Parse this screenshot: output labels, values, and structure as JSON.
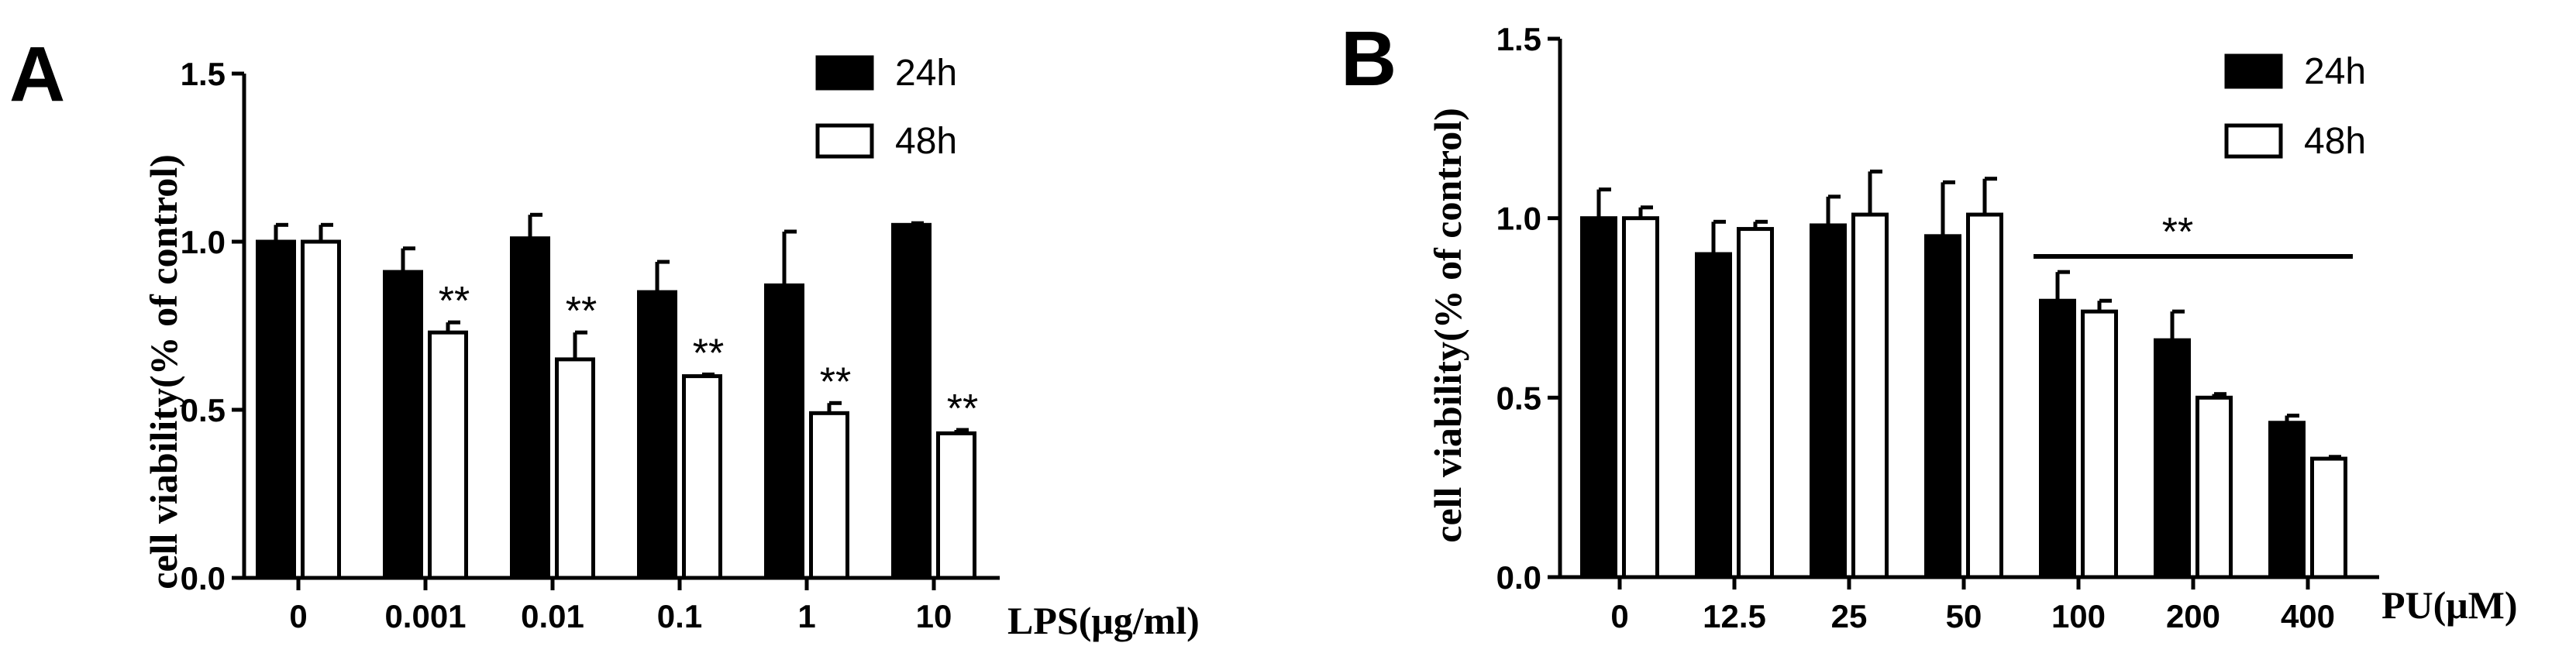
{
  "chart_data": [
    {
      "type": "bar",
      "panel": "A",
      "title": "",
      "ylabel": "cell viability(% of control)",
      "xlabel": "LPS(μg/ml)",
      "ylim": [
        0,
        1.5
      ],
      "yticks": [
        "0.0",
        "0.5",
        "1.0",
        "1.5"
      ],
      "categories": [
        "0",
        "0.001",
        "0.01",
        "0.1",
        "1",
        "10"
      ],
      "series": [
        {
          "name": "24h",
          "color": "#000000",
          "values": [
            1.0,
            0.91,
            1.01,
            0.85,
            0.87,
            1.05
          ],
          "errors": [
            0.05,
            0.07,
            0.07,
            0.09,
            0.16,
            0.005
          ]
        },
        {
          "name": "48h",
          "color": "#ffffff",
          "values": [
            1.0,
            0.73,
            0.65,
            0.6,
            0.49,
            0.43
          ],
          "errors": [
            0.05,
            0.03,
            0.08,
            0.005,
            0.03,
            0.01
          ]
        }
      ],
      "significance": [
        {
          "series": "48h",
          "category": "0.001",
          "label": "**"
        },
        {
          "series": "48h",
          "category": "0.01",
          "label": "**"
        },
        {
          "series": "48h",
          "category": "0.1",
          "label": "**"
        },
        {
          "series": "48h",
          "category": "1",
          "label": "**"
        },
        {
          "series": "48h",
          "category": "10",
          "label": "**"
        }
      ],
      "legend": "top-right",
      "grid": false
    },
    {
      "type": "bar",
      "panel": "B",
      "title": "",
      "ylabel": "cell viability(% of control)",
      "xlabel": "PU(μM)",
      "ylim": [
        0,
        1.5
      ],
      "yticks": [
        "0.0",
        "0.5",
        "1.0",
        "1.5"
      ],
      "categories": [
        "0",
        "12.5",
        "25",
        "50",
        "100",
        "200",
        "400"
      ],
      "series": [
        {
          "name": "24h",
          "color": "#000000",
          "values": [
            1.0,
            0.9,
            0.98,
            0.95,
            0.77,
            0.66,
            0.43
          ],
          "errors": [
            0.08,
            0.09,
            0.08,
            0.15,
            0.08,
            0.08,
            0.02
          ]
        },
        {
          "name": "48h",
          "color": "#ffffff",
          "values": [
            1.0,
            0.97,
            1.01,
            1.01,
            0.74,
            0.5,
            0.33
          ],
          "errors": [
            0.03,
            0.02,
            0.12,
            0.1,
            0.03,
            0.01,
            0.005
          ]
        }
      ],
      "significance_bar": {
        "from": "100",
        "to": "400",
        "label": "**"
      },
      "legend": "top-right",
      "grid": false
    }
  ]
}
